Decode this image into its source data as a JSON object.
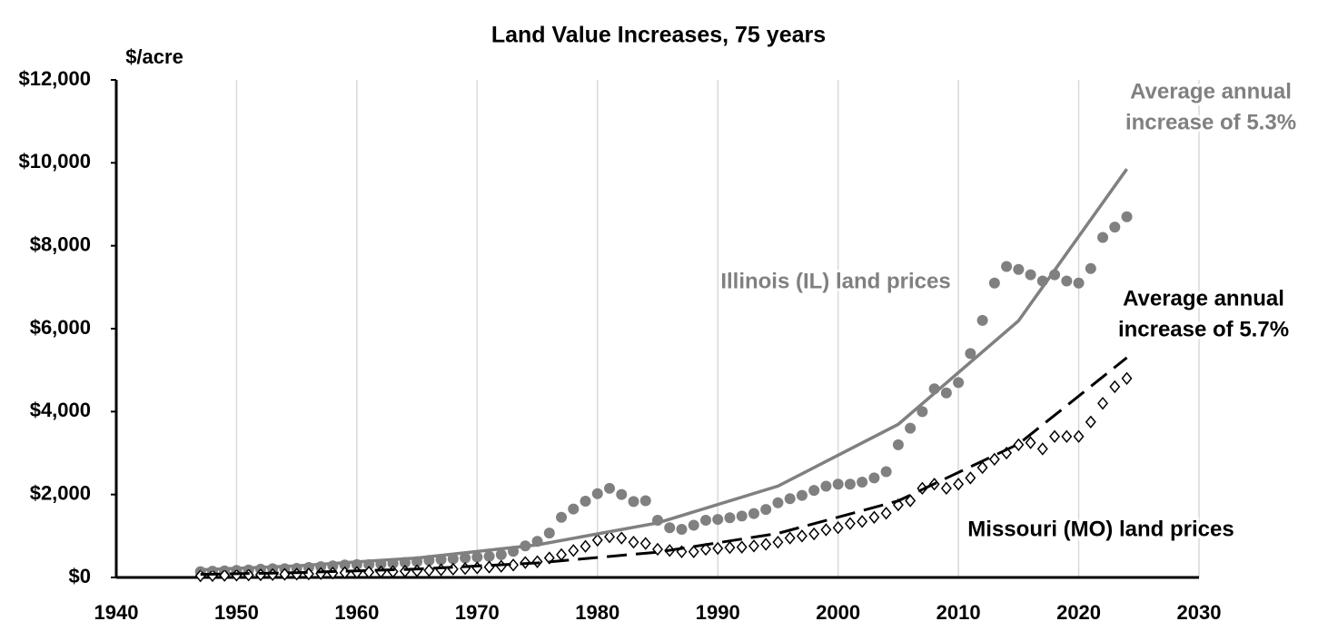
{
  "chart_data": {
    "type": "scatter",
    "title": "Land Value Increases, 75 years",
    "y_label": "$/acre",
    "xlim": [
      1940,
      2030
    ],
    "xticks": [
      1940,
      1950,
      1960,
      1970,
      1980,
      1990,
      2000,
      2010,
      2020,
      2030
    ],
    "ylim": [
      0,
      12000
    ],
    "yticks": [
      {
        "value": 0,
        "label": "$0"
      },
      {
        "value": 2000,
        "label": "$2,000"
      },
      {
        "value": 4000,
        "label": "$4,000"
      },
      {
        "value": 6000,
        "label": "$6,000"
      },
      {
        "value": 8000,
        "label": "$8,000"
      },
      {
        "value": 10000,
        "label": "$10,000"
      },
      {
        "value": 12000,
        "label": "$12,000"
      }
    ],
    "grid": "x",
    "series": [
      {
        "name": "Illinois (IL) land prices",
        "color": "#808080",
        "marker": "circle",
        "x": [
          1947,
          1948,
          1949,
          1950,
          1951,
          1952,
          1953,
          1954,
          1955,
          1956,
          1957,
          1958,
          1959,
          1960,
          1961,
          1962,
          1963,
          1964,
          1965,
          1966,
          1967,
          1968,
          1969,
          1970,
          1971,
          1972,
          1973,
          1974,
          1975,
          1976,
          1977,
          1978,
          1979,
          1980,
          1981,
          1982,
          1983,
          1984,
          1985,
          1986,
          1987,
          1988,
          1989,
          1990,
          1991,
          1992,
          1993,
          1994,
          1995,
          1996,
          1997,
          1998,
          1999,
          2000,
          2001,
          2002,
          2003,
          2004,
          2005,
          2006,
          2007,
          2008,
          2009,
          2010,
          2011,
          2012,
          2013,
          2014,
          2015,
          2016,
          2017,
          2018,
          2019,
          2020,
          2021,
          2022,
          2023,
          2024
        ],
        "values": [
          140,
          150,
          160,
          170,
          180,
          200,
          210,
          210,
          220,
          240,
          260,
          280,
          300,
          310,
          310,
          320,
          340,
          360,
          380,
          410,
          430,
          450,
          470,
          490,
          510,
          550,
          630,
          760,
          870,
          1070,
          1450,
          1650,
          1840,
          2020,
          2150,
          2000,
          1830,
          1850,
          1380,
          1200,
          1160,
          1260,
          1380,
          1400,
          1440,
          1480,
          1540,
          1640,
          1800,
          1900,
          1980,
          2100,
          2200,
          2250,
          2250,
          2300,
          2400,
          2550,
          3200,
          3600,
          4000,
          4550,
          4450,
          4700,
          5400,
          6200,
          7100,
          7500,
          7430,
          7300,
          7150,
          7300,
          7150,
          7100,
          7450,
          8200,
          8450,
          8700
        ]
      },
      {
        "name": "Missouri (MO) land prices",
        "color": "#000000",
        "marker": "diamond",
        "x": [
          1947,
          1948,
          1949,
          1950,
          1951,
          1952,
          1953,
          1954,
          1955,
          1956,
          1957,
          1958,
          1959,
          1960,
          1961,
          1962,
          1963,
          1964,
          1965,
          1966,
          1967,
          1968,
          1969,
          1970,
          1971,
          1972,
          1973,
          1974,
          1975,
          1976,
          1977,
          1978,
          1979,
          1980,
          1981,
          1982,
          1983,
          1984,
          1985,
          1986,
          1987,
          1988,
          1989,
          1990,
          1991,
          1992,
          1993,
          1994,
          1995,
          1996,
          1997,
          1998,
          1999,
          2000,
          2001,
          2002,
          2003,
          2004,
          2005,
          2006,
          2007,
          2008,
          2009,
          2010,
          2011,
          2012,
          2013,
          2014,
          2015,
          2016,
          2017,
          2018,
          2019,
          2020,
          2021,
          2022,
          2023,
          2024
        ],
        "values": [
          40,
          45,
          50,
          55,
          60,
          65,
          70,
          75,
          80,
          85,
          95,
          105,
          115,
          120,
          125,
          135,
          140,
          150,
          160,
          170,
          185,
          200,
          215,
          230,
          250,
          270,
          300,
          360,
          380,
          470,
          550,
          650,
          750,
          900,
          980,
          950,
          850,
          820,
          680,
          650,
          620,
          620,
          680,
          700,
          720,
          730,
          760,
          800,
          850,
          950,
          1000,
          1050,
          1150,
          1200,
          1300,
          1350,
          1450,
          1550,
          1750,
          1850,
          2150,
          2250,
          2150,
          2250,
          2400,
          2650,
          2850,
          3000,
          3200,
          3250,
          3100,
          3400,
          3400,
          3400,
          3750,
          4200,
          4600,
          4800
        ]
      }
    ],
    "trends": [
      {
        "color": "#808080",
        "dash": false,
        "x": [
          1947,
          1955,
          1965,
          1975,
          1985,
          1995,
          2005,
          2015,
          2024
        ],
        "values": [
          184,
          280,
          469,
          785,
          1315,
          2203,
          3693,
          6190,
          9850
        ]
      },
      {
        "color": "#000000",
        "dash": true,
        "x": [
          1947,
          1955,
          1965,
          1975,
          1985,
          1995,
          2005,
          2015,
          2024
        ],
        "values": [
          74,
          116,
          202,
          351,
          610,
          1062,
          1847,
          3218,
          5300
        ]
      }
    ],
    "annotations": [
      {
        "lines": [
          "Average annual",
          "increase of 5.3%"
        ],
        "color": "#808080"
      },
      {
        "lines": [
          "Average annual",
          "increase of 5.7%"
        ],
        "color": "#000000"
      }
    ]
  }
}
